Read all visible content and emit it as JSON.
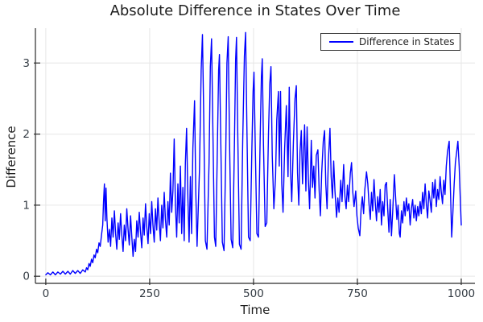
{
  "chart_data": {
    "type": "line",
    "title": "Absolute Difference in States Over Time",
    "xlabel": "Time",
    "ylabel": "Difference",
    "xlim": [
      -25,
      1033
    ],
    "ylim": [
      -0.1,
      3.49
    ],
    "x_ticks": [
      0,
      250,
      500,
      750,
      1000
    ],
    "y_ticks": [
      0,
      1,
      2,
      3
    ],
    "grid": true,
    "legend_position": "top-right",
    "colors": {
      "background": "#ffffff",
      "grid": "#e6e6e6",
      "spine": "#2b2b2b",
      "tick_label": "#333b43",
      "title": "#1f1f1f",
      "line": "#0000ff",
      "legend_border": "#2e2e2e",
      "legend_bg": "#ffffff"
    },
    "series": [
      {
        "name": "Difference in States",
        "color": "#0000ff",
        "points": [
          [
            0,
            0.02
          ],
          [
            5,
            0.05
          ],
          [
            11,
            0.02
          ],
          [
            17,
            0.06
          ],
          [
            23,
            0.02
          ],
          [
            29,
            0.06
          ],
          [
            35,
            0.03
          ],
          [
            41,
            0.07
          ],
          [
            47,
            0.03
          ],
          [
            53,
            0.07
          ],
          [
            59,
            0.03
          ],
          [
            65,
            0.08
          ],
          [
            71,
            0.04
          ],
          [
            77,
            0.08
          ],
          [
            83,
            0.04
          ],
          [
            89,
            0.09
          ],
          [
            95,
            0.06
          ],
          [
            98,
            0.12
          ],
          [
            101,
            0.09
          ],
          [
            104,
            0.18
          ],
          [
            107,
            0.14
          ],
          [
            110,
            0.24
          ],
          [
            113,
            0.19
          ],
          [
            116,
            0.3
          ],
          [
            119,
            0.26
          ],
          [
            122,
            0.38
          ],
          [
            125,
            0.33
          ],
          [
            128,
            0.47
          ],
          [
            131,
            0.42
          ],
          [
            134,
            0.58
          ],
          [
            137,
            0.72
          ],
          [
            139,
            1.05
          ],
          [
            141,
            1.3
          ],
          [
            143,
            0.78
          ],
          [
            145,
            1.24
          ],
          [
            147,
            0.82
          ],
          [
            150,
            0.48
          ],
          [
            153,
            0.66
          ],
          [
            156,
            0.42
          ],
          [
            159,
            0.82
          ],
          [
            162,
            0.55
          ],
          [
            165,
            0.92
          ],
          [
            168,
            0.6
          ],
          [
            171,
            0.38
          ],
          [
            174,
            0.75
          ],
          [
            177,
            0.52
          ],
          [
            180,
            0.88
          ],
          [
            183,
            0.58
          ],
          [
            186,
            0.35
          ],
          [
            189,
            0.72
          ],
          [
            192,
            0.5
          ],
          [
            195,
            0.95
          ],
          [
            198,
            0.66
          ],
          [
            201,
            0.44
          ],
          [
            204,
            0.85
          ],
          [
            207,
            0.56
          ],
          [
            210,
            0.28
          ],
          [
            213,
            0.52
          ],
          [
            216,
            0.35
          ],
          [
            219,
            0.78
          ],
          [
            222,
            0.55
          ],
          [
            225,
            0.9
          ],
          [
            228,
            0.62
          ],
          [
            231,
            0.4
          ],
          [
            234,
            0.82
          ],
          [
            237,
            0.58
          ],
          [
            240,
            1.02
          ],
          [
            243,
            0.7
          ],
          [
            246,
            0.46
          ],
          [
            249,
            0.88
          ],
          [
            252,
            0.6
          ],
          [
            255,
            1.05
          ],
          [
            258,
            0.72
          ],
          [
            261,
            0.48
          ],
          [
            264,
            0.95
          ],
          [
            267,
            0.65
          ],
          [
            270,
            1.1
          ],
          [
            273,
            0.75
          ],
          [
            276,
            0.5
          ],
          [
            279,
            1.0
          ],
          [
            282,
            0.68
          ],
          [
            285,
            1.18
          ],
          [
            288,
            0.8
          ],
          [
            291,
            0.55
          ],
          [
            294,
            1.05
          ],
          [
            297,
            0.72
          ],
          [
            300,
            1.45
          ],
          [
            303,
            0.9
          ],
          [
            306,
            1.2
          ],
          [
            309,
            1.93
          ],
          [
            312,
            1.0
          ],
          [
            315,
            0.55
          ],
          [
            318,
            1.3
          ],
          [
            321,
            0.75
          ],
          [
            324,
            1.55
          ],
          [
            327,
            0.6
          ],
          [
            330,
            1.25
          ],
          [
            333,
            0.5
          ],
          [
            336,
            1.6
          ],
          [
            339,
            2.08
          ],
          [
            342,
            1.1
          ],
          [
            345,
            0.48
          ],
          [
            348,
            1.4
          ],
          [
            351,
            0.6
          ],
          [
            354,
            1.8
          ],
          [
            358,
            2.47
          ],
          [
            361,
            1.2
          ],
          [
            364,
            0.42
          ],
          [
            370,
            1.5
          ],
          [
            374,
            2.9
          ],
          [
            377,
            3.4
          ],
          [
            380,
            2.3
          ],
          [
            384,
            0.5
          ],
          [
            388,
            0.38
          ],
          [
            393,
            1.6
          ],
          [
            396,
            2.95
          ],
          [
            399,
            3.34
          ],
          [
            402,
            2.1
          ],
          [
            406,
            0.55
          ],
          [
            409,
            0.42
          ],
          [
            413,
            1.8
          ],
          [
            416,
            2.9
          ],
          [
            418,
            3.12
          ],
          [
            421,
            1.95
          ],
          [
            425,
            0.48
          ],
          [
            429,
            0.36
          ],
          [
            433,
            1.7
          ],
          [
            436,
            3.0
          ],
          [
            439,
            3.37
          ],
          [
            442,
            2.0
          ],
          [
            446,
            0.52
          ],
          [
            450,
            0.4
          ],
          [
            454,
            1.85
          ],
          [
            457,
            3.05
          ],
          [
            459,
            3.36
          ],
          [
            462,
            2.05
          ],
          [
            466,
            0.45
          ],
          [
            470,
            0.38
          ],
          [
            474,
            1.9
          ],
          [
            478,
            3.1
          ],
          [
            481,
            3.43
          ],
          [
            484,
            2.1
          ],
          [
            488,
            0.55
          ],
          [
            492,
            0.5
          ],
          [
            496,
            1.8
          ],
          [
            499,
            2.6
          ],
          [
            501,
            2.87
          ],
          [
            504,
            1.9
          ],
          [
            508,
            0.6
          ],
          [
            512,
            0.55
          ],
          [
            516,
            1.95
          ],
          [
            519,
            2.8
          ],
          [
            521,
            3.06
          ],
          [
            524,
            1.85
          ],
          [
            528,
            0.7
          ],
          [
            532,
            0.75
          ],
          [
            536,
            2.0
          ],
          [
            539,
            2.7
          ],
          [
            542,
            2.95
          ],
          [
            545,
            1.7
          ],
          [
            549,
            0.95
          ],
          [
            553,
            1.4
          ],
          [
            556,
            2.2
          ],
          [
            560,
            2.6
          ],
          [
            562,
            1.55
          ],
          [
            565,
            2.6
          ],
          [
            568,
            1.3
          ],
          [
            571,
            0.9
          ],
          [
            575,
            1.8
          ],
          [
            579,
            2.4
          ],
          [
            583,
            1.4
          ],
          [
            586,
            2.66
          ],
          [
            589,
            1.5
          ],
          [
            592,
            1.05
          ],
          [
            596,
            1.9
          ],
          [
            600,
            2.5
          ],
          [
            603,
            2.68
          ],
          [
            606,
            1.45
          ],
          [
            609,
            1.0
          ],
          [
            612,
            1.75
          ],
          [
            615,
            2.05
          ],
          [
            618,
            1.3
          ],
          [
            621,
            1.85
          ],
          [
            623,
            2.13
          ],
          [
            626,
            1.2
          ],
          [
            629,
            2.1
          ],
          [
            632,
            1.35
          ],
          [
            635,
            0.95
          ],
          [
            639,
            1.91
          ],
          [
            642,
            1.25
          ],
          [
            645,
            1.55
          ],
          [
            648,
            1.1
          ],
          [
            651,
            1.7
          ],
          [
            655,
            1.78
          ],
          [
            658,
            1.2
          ],
          [
            661,
            0.85
          ],
          [
            664,
            1.45
          ],
          [
            668,
            1.9
          ],
          [
            671,
            2.05
          ],
          [
            674,
            1.3
          ],
          [
            677,
            0.95
          ],
          [
            680,
            1.6
          ],
          [
            684,
            2.08
          ],
          [
            687,
            1.4
          ],
          [
            690,
            1.1
          ],
          [
            693,
            1.62
          ],
          [
            696,
            1.2
          ],
          [
            700,
            0.83
          ],
          [
            703,
            1.1
          ],
          [
            706,
            0.9
          ],
          [
            710,
            1.35
          ],
          [
            713,
            1.05
          ],
          [
            717,
            1.57
          ],
          [
            720,
            1.12
          ],
          [
            723,
            0.95
          ],
          [
            726,
            1.28
          ],
          [
            729,
            1.05
          ],
          [
            733,
            1.45
          ],
          [
            736,
            1.6
          ],
          [
            739,
            1.18
          ],
          [
            742,
            0.98
          ],
          [
            746,
            1.2
          ],
          [
            749,
            0.85
          ],
          [
            752,
            0.68
          ],
          [
            756,
            0.57
          ],
          [
            759,
            0.95
          ],
          [
            762,
            1.12
          ],
          [
            765,
            0.88
          ],
          [
            768,
            1.22
          ],
          [
            772,
            1.47
          ],
          [
            775,
            1.3
          ],
          [
            778,
            1.02
          ],
          [
            781,
            0.8
          ],
          [
            784,
            1.18
          ],
          [
            787,
            0.92
          ],
          [
            790,
            1.36
          ],
          [
            793,
            1.05
          ],
          [
            796,
            0.78
          ],
          [
            799,
            1.12
          ],
          [
            802,
            0.9
          ],
          [
            805,
            1.22
          ],
          [
            808,
            0.72
          ],
          [
            811,
            1.05
          ],
          [
            814,
            0.85
          ],
          [
            817,
            1.28
          ],
          [
            820,
            1.32
          ],
          [
            823,
            0.95
          ],
          [
            826,
            0.62
          ],
          [
            829,
            1.08
          ],
          [
            832,
            0.57
          ],
          [
            835,
            0.9
          ],
          [
            839,
            1.43
          ],
          [
            842,
            1.12
          ],
          [
            845,
            0.8
          ],
          [
            848,
            1.0
          ],
          [
            851,
            0.6
          ],
          [
            853,
            0.55
          ],
          [
            856,
            0.92
          ],
          [
            859,
            0.75
          ],
          [
            862,
            1.05
          ],
          [
            865,
            0.85
          ],
          [
            868,
            1.1
          ],
          [
            871,
            0.92
          ],
          [
            874,
            1.02
          ],
          [
            877,
            0.72
          ],
          [
            880,
            0.95
          ],
          [
            883,
            1.08
          ],
          [
            886,
            0.82
          ],
          [
            889,
            1.0
          ],
          [
            892,
            0.78
          ],
          [
            895,
            0.98
          ],
          [
            898,
            0.85
          ],
          [
            901,
            1.05
          ],
          [
            904,
            0.88
          ],
          [
            907,
            1.18
          ],
          [
            910,
            0.95
          ],
          [
            913,
            1.3
          ],
          [
            916,
            1.02
          ],
          [
            919,
            0.82
          ],
          [
            922,
            1.2
          ],
          [
            925,
            1.06
          ],
          [
            928,
            0.9
          ],
          [
            931,
            1.32
          ],
          [
            934,
            1.1
          ],
          [
            937,
            1.36
          ],
          [
            940,
            0.98
          ],
          [
            943,
            1.22
          ],
          [
            946,
            1.08
          ],
          [
            949,
            1.4
          ],
          [
            952,
            1.18
          ],
          [
            955,
            1.02
          ],
          [
            958,
            1.35
          ],
          [
            961,
            1.15
          ],
          [
            964,
            1.55
          ],
          [
            967,
            1.75
          ],
          [
            971,
            1.9
          ],
          [
            974,
            1.2
          ],
          [
            977,
            0.55
          ],
          [
            980,
            0.9
          ],
          [
            983,
            1.3
          ],
          [
            986,
            1.6
          ],
          [
            989,
            1.75
          ],
          [
            992,
            1.9
          ],
          [
            995,
            1.55
          ],
          [
            998,
            1.05
          ],
          [
            1000,
            0.72
          ]
        ]
      }
    ]
  }
}
